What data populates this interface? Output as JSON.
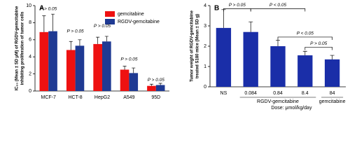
{
  "chart_data": [
    {
      "type": "bar",
      "panel_label": "A",
      "y_label": [
        "IC₅₀ (Mean ± SD μM) of RGDV-gemcitabine",
        "inhibiting proliferation of tumor cells"
      ],
      "categories": [
        "MCF-7",
        "HCT-8",
        "HepG2",
        "A549",
        "95D"
      ],
      "series": [
        {
          "name": "gemcitabine",
          "color": "#ee1111",
          "values": [
            6.9,
            4.8,
            5.5,
            2.5,
            0.6
          ],
          "errors": [
            1.9,
            1.0,
            0.8,
            0.4,
            0.2
          ]
        },
        {
          "name": "RGDV-gemcitabine",
          "color": "#1f3a93",
          "values": [
            7.0,
            5.3,
            5.8,
            2.1,
            0.7
          ],
          "errors": [
            2.0,
            0.7,
            0.6,
            0.6,
            0.2
          ]
        }
      ],
      "ylim": [
        0,
        10
      ],
      "yticks": [
        0,
        2,
        4,
        6,
        8,
        10
      ],
      "annotations": [
        "P > 0.05",
        "P > 0.05",
        "P > 0.05",
        "P > 0.05",
        "P > 0.05"
      ]
    },
    {
      "type": "bar",
      "panel_label": "B",
      "y_label": [
        "Tumor weight of RGDV-gemcitabine",
        "treated S180 mice (Mean ± SD g)"
      ],
      "categories": [
        "NS",
        "0.084",
        "0.84",
        "8.4",
        "84"
      ],
      "values": [
        2.9,
        2.7,
        2.0,
        1.55,
        1.35
      ],
      "errors": [
        0.9,
        0.5,
        0.3,
        0.2,
        0.2
      ],
      "color": "#1a2ea8",
      "ylim": [
        0,
        4
      ],
      "yticks": [
        0,
        1,
        2,
        3,
        4
      ],
      "group_labels": [
        "RGDV-gemcitabine",
        "gemcitabine"
      ],
      "x_label": "Dose: μmol/kg/day",
      "annotations": [
        "P > 0.05",
        "P < 0.05",
        "P < 0.05",
        "P > 0.05"
      ]
    }
  ]
}
